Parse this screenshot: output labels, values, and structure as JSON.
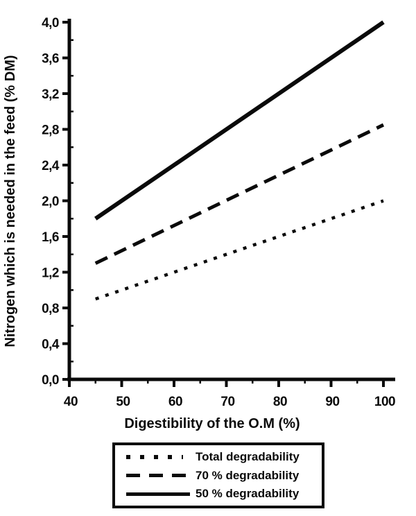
{
  "chart_data": {
    "type": "line",
    "title": "",
    "xlabel": "Digestibility of the O.M (%)",
    "ylabel": "Nitrogen which is needed in the feed (% DM)",
    "xlim": [
      40,
      100
    ],
    "ylim": [
      0,
      4.0
    ],
    "xtick_values": [
      40,
      50,
      60,
      70,
      80,
      90,
      100
    ],
    "xtick_labels": [
      "40",
      "50",
      "60",
      "70",
      "80",
      "90",
      "100"
    ],
    "xminor_values": [
      45,
      55,
      65,
      75,
      85,
      95
    ],
    "ytick_values": [
      0.0,
      0.4,
      0.8,
      1.2,
      1.6,
      2.0,
      2.4,
      2.8,
      3.2,
      3.6,
      4.0
    ],
    "ytick_labels": [
      "0,0",
      "0,4",
      "0,8",
      "1,2",
      "1,6",
      "2,0",
      "2,4",
      "2,8",
      "3,2",
      "3,6",
      "4,0"
    ],
    "yminor_values": [
      0.2,
      0.6,
      1.0,
      1.4,
      1.8,
      2.2,
      2.6,
      3.0,
      3.4,
      3.8
    ],
    "grid": false,
    "line_color": "#0a0a0a",
    "legend_position": "bottom-box",
    "series": [
      {
        "name": "Total degradability",
        "style": "dotted",
        "x": [
          45,
          100
        ],
        "values": [
          0.9,
          2.0
        ]
      },
      {
        "name": "70 % degradability",
        "style": "dashed",
        "x": [
          45,
          100
        ],
        "values": [
          1.3,
          2.85
        ]
      },
      {
        "name": "50 % degradability",
        "style": "solid",
        "x": [
          45,
          100
        ],
        "values": [
          1.8,
          4.0
        ]
      }
    ]
  },
  "legend": {
    "items": [
      {
        "label": "Total degradability",
        "style": "dotted"
      },
      {
        "label": "70 % degradability",
        "style": "dashed"
      },
      {
        "label": "50 % degradability",
        "style": "solid"
      }
    ]
  }
}
